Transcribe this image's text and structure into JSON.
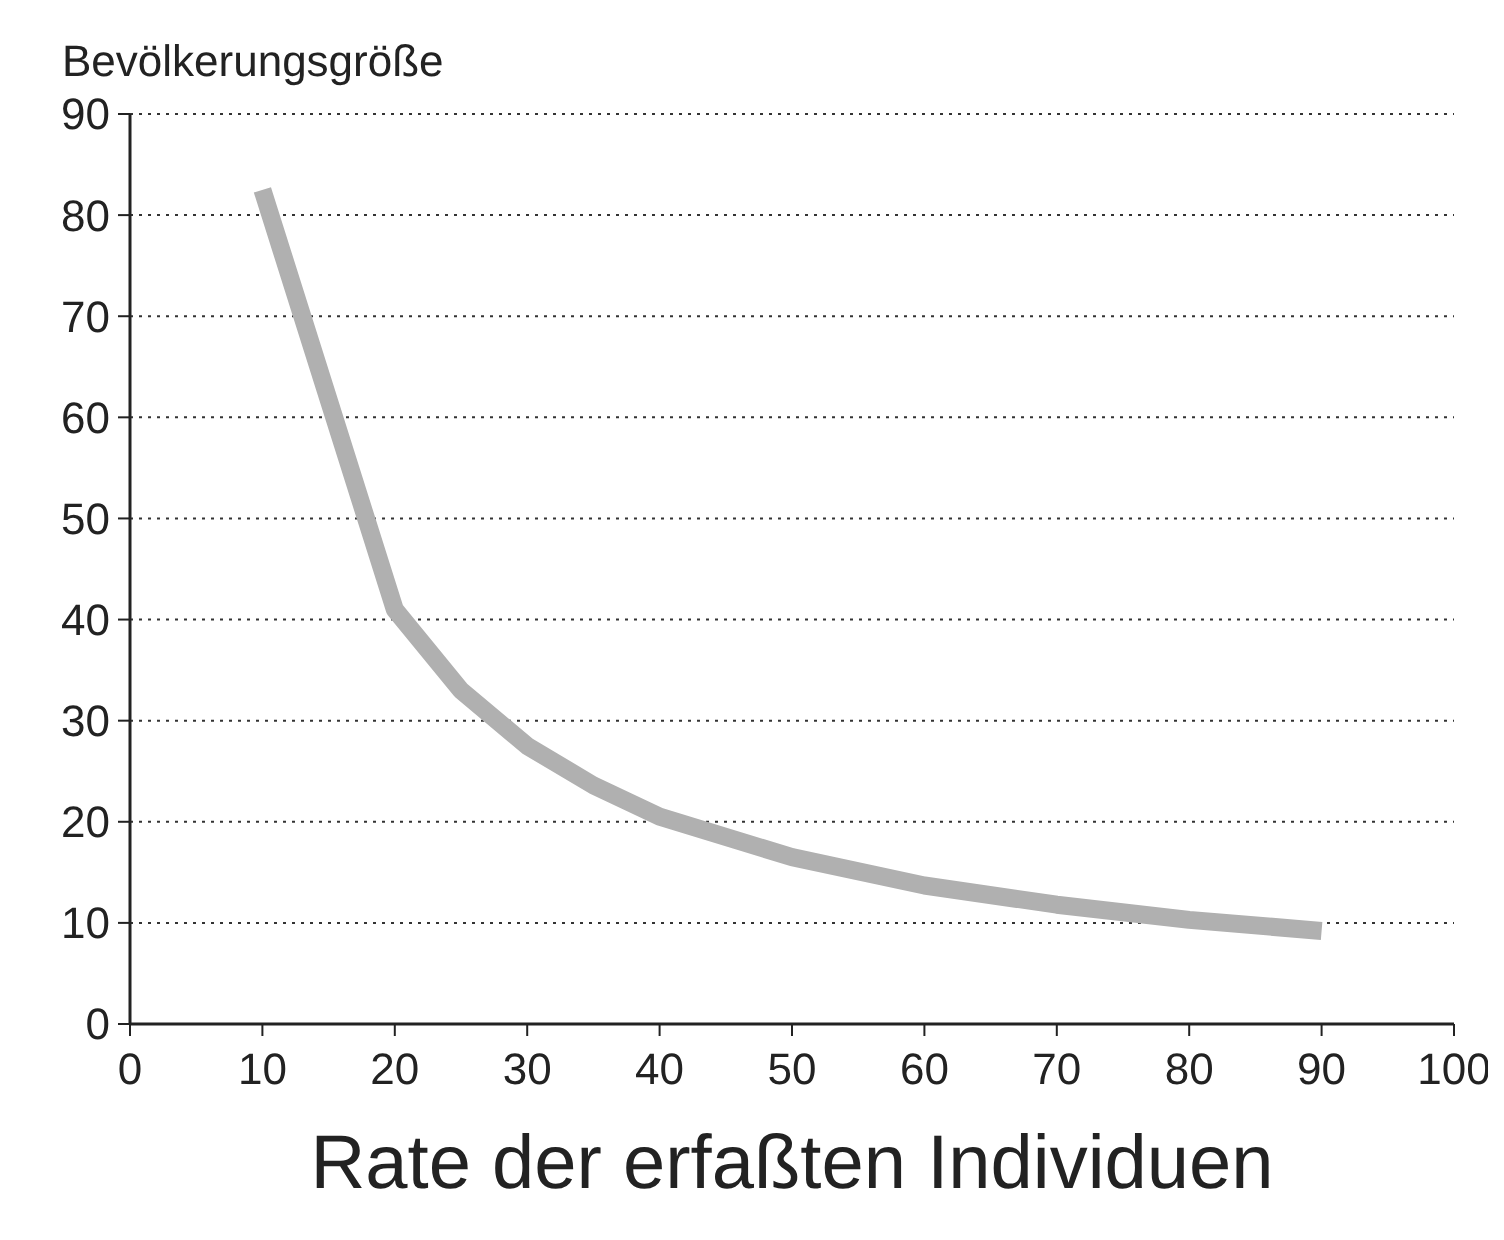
{
  "chart_data": {
    "type": "line",
    "ylabel": "Bevölkerungsgröße",
    "xlabel": "Rate der erfaßten Individuen",
    "x": [
      10,
      20,
      25,
      30,
      35,
      40,
      50,
      60,
      70,
      80,
      90
    ],
    "series": [
      {
        "color": "#b0b0b0",
        "values": [
          82.5,
          41,
          33,
          27.5,
          23.6,
          20.5,
          16.5,
          13.7,
          11.8,
          10.3,
          9.2
        ]
      }
    ],
    "xlim": [
      0,
      100
    ],
    "xticks": [
      0,
      10,
      20,
      30,
      40,
      50,
      60,
      70,
      80,
      90,
      100
    ],
    "ylim": [
      0,
      90
    ],
    "yticks": [
      0,
      10,
      20,
      30,
      40,
      50,
      60,
      70,
      80,
      90
    ],
    "grid": "y",
    "marker": "none",
    "line_style": "solid"
  }
}
